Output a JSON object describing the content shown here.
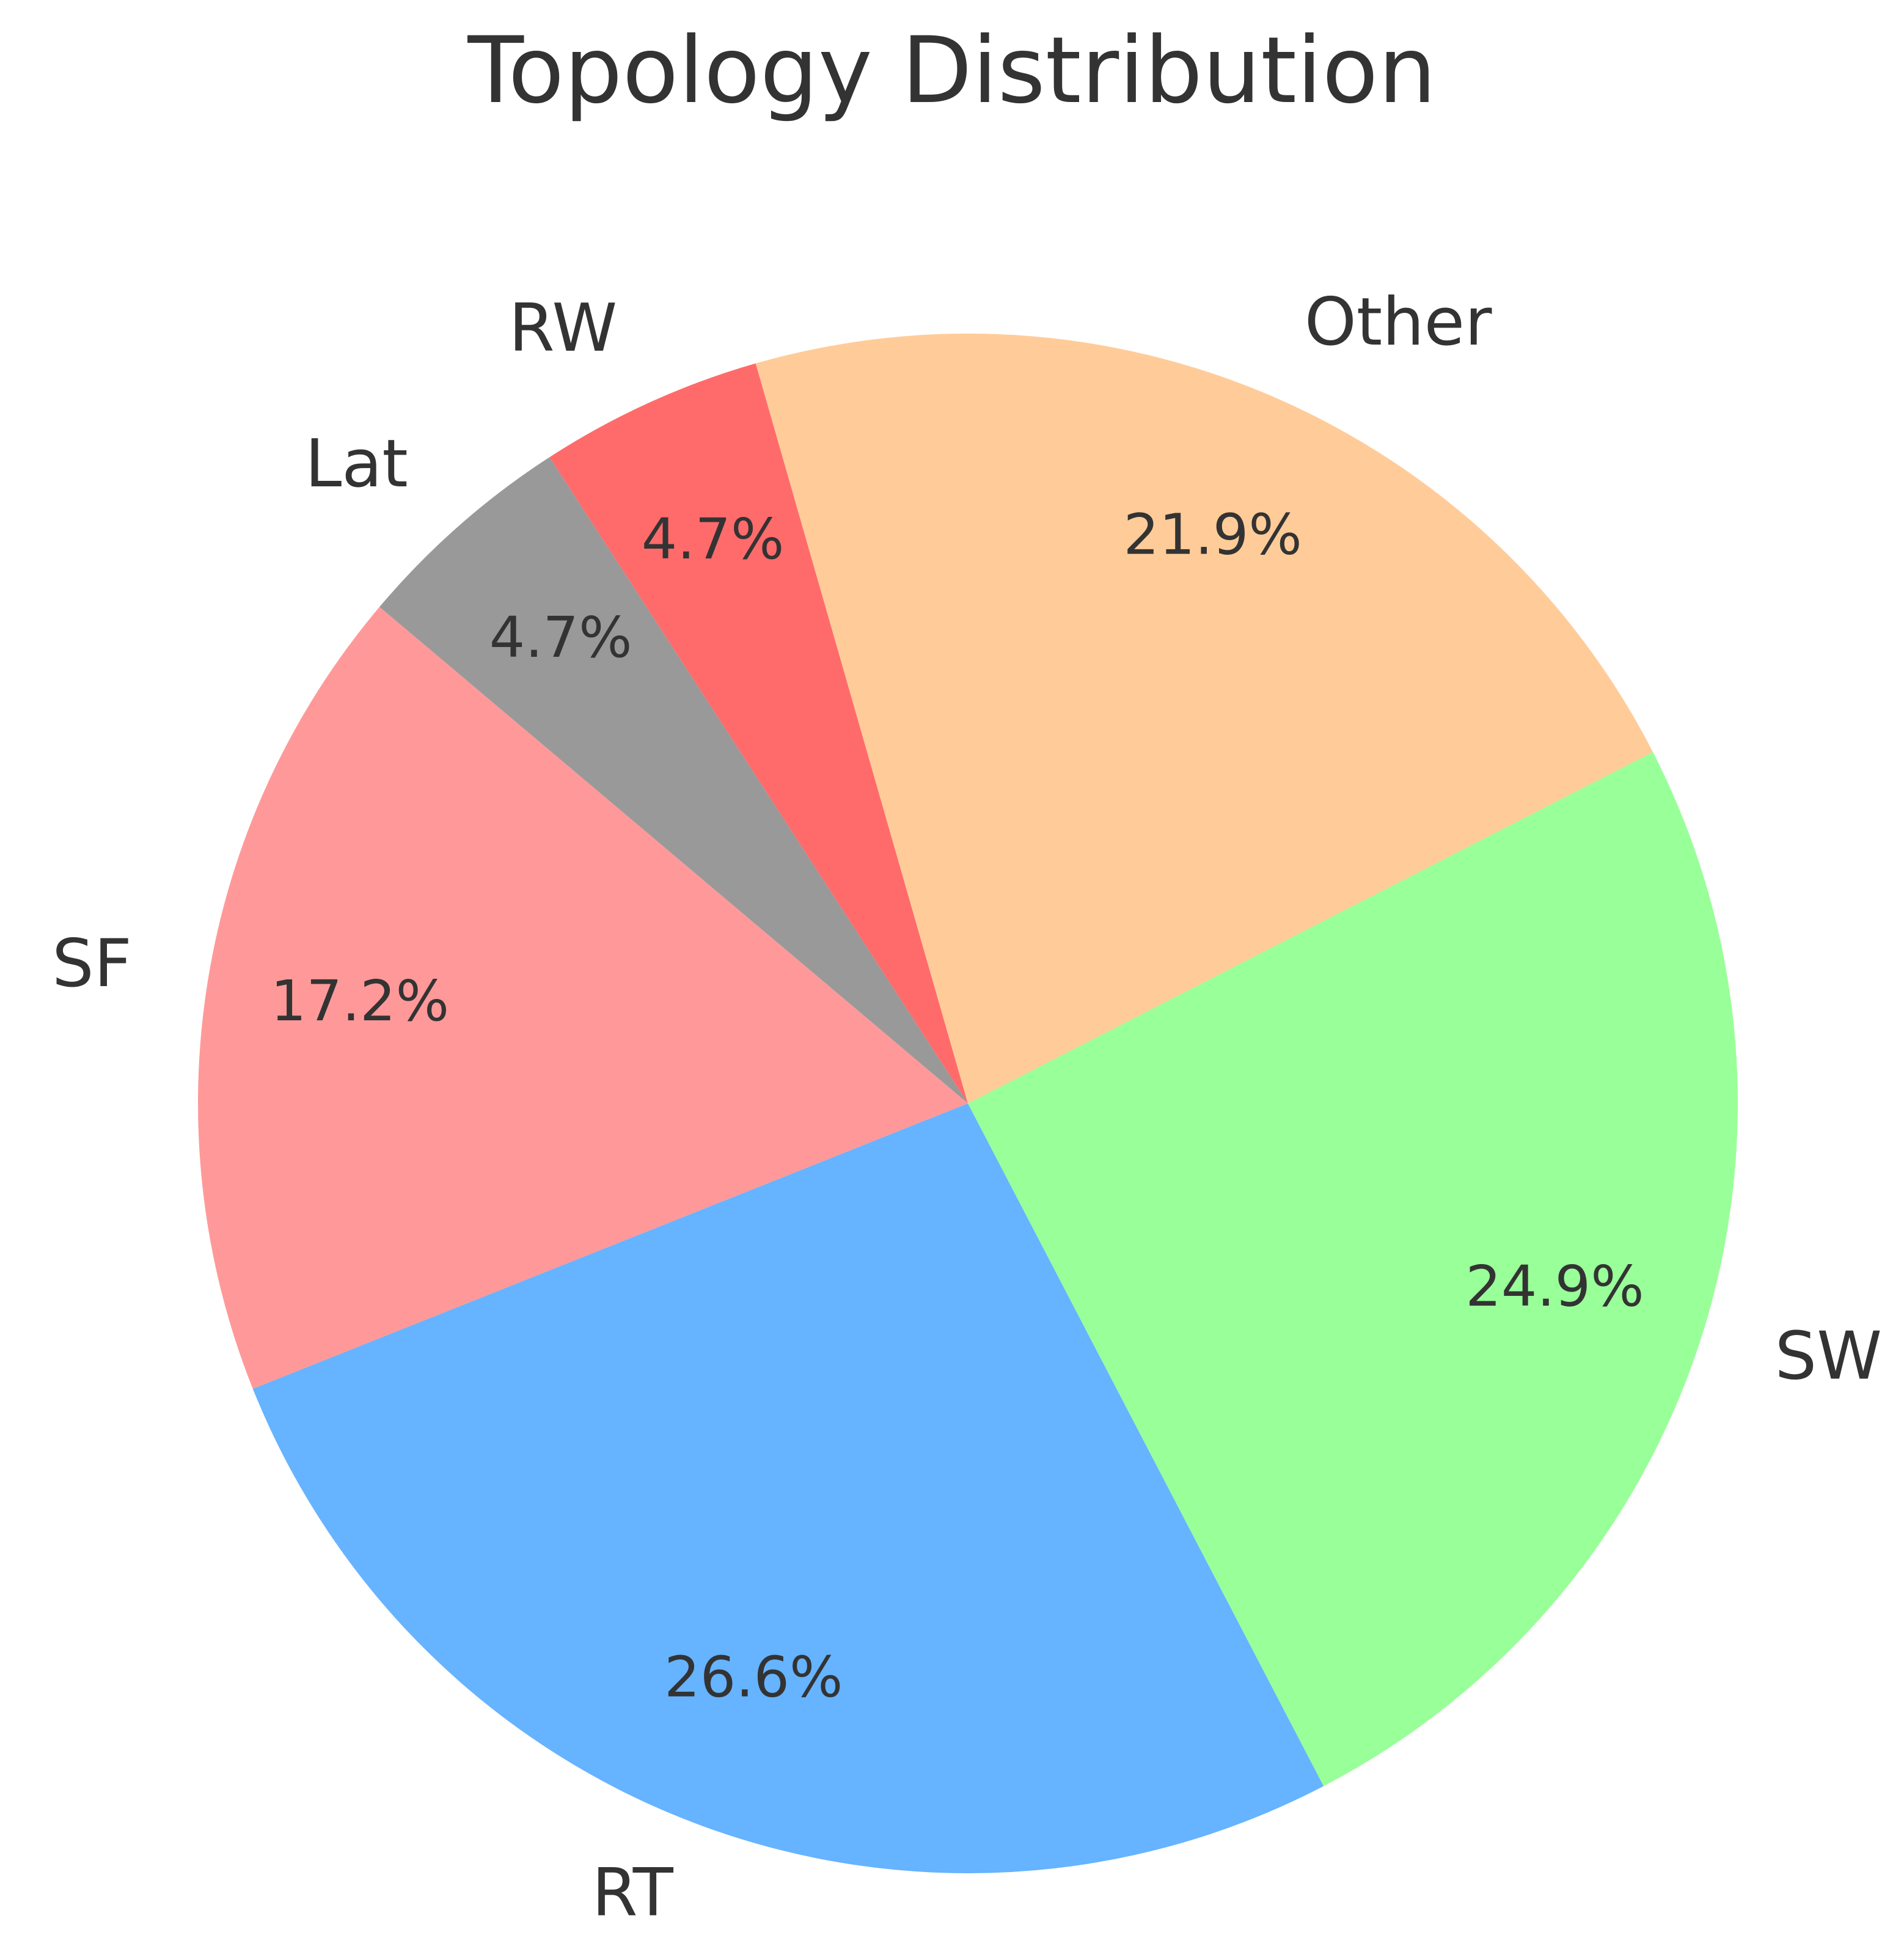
{
  "chart_data": {
    "type": "pie",
    "title": "Topology Distribution",
    "start_angle_deg": 106,
    "direction": "counterclockwise",
    "slices": [
      {
        "label": "RW",
        "value": 4.7,
        "pct_label": "4.7%",
        "color": "#ff6b6b"
      },
      {
        "label": "Lat",
        "value": 4.7,
        "pct_label": "4.7%",
        "color": "#999999"
      },
      {
        "label": "SF",
        "value": 17.2,
        "pct_label": "17.2%",
        "color": "#ff9999"
      },
      {
        "label": "RT",
        "value": 26.6,
        "pct_label": "26.6%",
        "color": "#66b3ff"
      },
      {
        "label": "SW",
        "value": 24.9,
        "pct_label": "24.9%",
        "color": "#99ff99"
      },
      {
        "label": "Other",
        "value": 21.9,
        "pct_label": "21.9%",
        "color": "#ffcc99"
      }
    ]
  }
}
